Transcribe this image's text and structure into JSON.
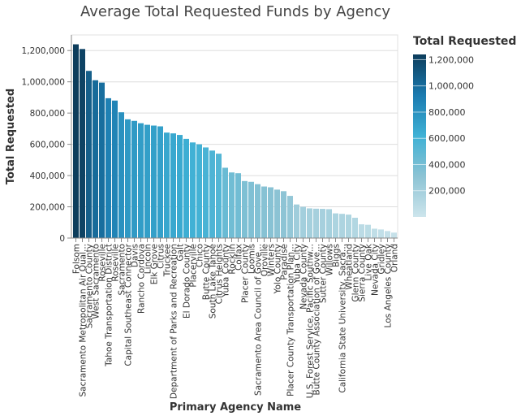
{
  "chart_data": {
    "type": "bar",
    "title": "Average Total Requested Funds by Agency",
    "xlabel": "Primary Agency Name",
    "ylabel": "Total Requested",
    "ylim": [
      0,
      1300000
    ],
    "yticks": [
      0,
      200000,
      400000,
      600000,
      800000,
      1000000,
      1200000
    ],
    "ytick_labels": [
      "0",
      "200,000",
      "400,000",
      "600,000",
      "800,000",
      "1,000,000",
      "1,200,000"
    ],
    "grid": true,
    "categories": [
      "Folsom",
      "Sacramento Metropolitan Air Qual...",
      "Sacramento County",
      "West Sacramento",
      "Roseville",
      "Tahoe Transportation District",
      "Roseville",
      "Sacramento",
      "Capital Southeast Connector",
      "Davis",
      "Rancho Cordova",
      "Lincoln",
      "Elk Grove",
      "Citrus",
      "Truckee",
      "Department of Parks and Recreation",
      "Galt",
      "El Dorado County",
      "Placerville",
      "Chico",
      "Butte County",
      "South Lake Tahoe",
      "Citrus Heights",
      "Yuba County",
      "Rocklin",
      "Colfax",
      "Placer County",
      "Loomis",
      "Sacramento Area Council of Gove...",
      "Oroville",
      "Winters",
      "Yolo County",
      "Paradise",
      "Placer County Transportation Plan...",
      "Yuba City",
      "Nevada County",
      "U.S. Forest Service, Pacific Southw...",
      "Butte County Association of Gove...",
      "Sutter County",
      "Willows",
      "Biggs",
      "California State University, Sacra...",
      "Wheatland",
      "Glenn County",
      "Sierra County",
      "Live Oak",
      "Nevada City",
      "Gridley",
      "Los Angeles County",
      "Orland"
    ],
    "values": [
      1240000,
      1210000,
      1070000,
      1010000,
      995000,
      895000,
      880000,
      805000,
      760000,
      750000,
      735000,
      725000,
      720000,
      715000,
      675000,
      670000,
      660000,
      635000,
      612000,
      600000,
      580000,
      560000,
      540000,
      450000,
      420000,
      415000,
      365000,
      360000,
      345000,
      330000,
      325000,
      310000,
      300000,
      270000,
      215000,
      200000,
      190000,
      188000,
      187000,
      185000,
      158000,
      155000,
      150000,
      130000,
      88000,
      85000,
      60000,
      55000,
      45000,
      35000
    ],
    "legend": {
      "title": "Total Requested",
      "position": "right",
      "ticks": [
        200000,
        400000,
        600000,
        800000,
        1000000,
        1200000
      ],
      "tick_labels": [
        "200,000",
        "400,000",
        "600,000",
        "800,000",
        "1,000,000",
        "1,200,000"
      ],
      "domain": [
        0,
        1240000
      ]
    },
    "colors": {
      "scale_low": "#cde5ec",
      "scale_mid_low": "#8cc3d4",
      "scale_mid": "#3fb1d5",
      "scale_mid_high": "#1b7bb0",
      "scale_high": "#0d3d5c",
      "grid": "#dddddd",
      "axis": "#888888"
    }
  }
}
